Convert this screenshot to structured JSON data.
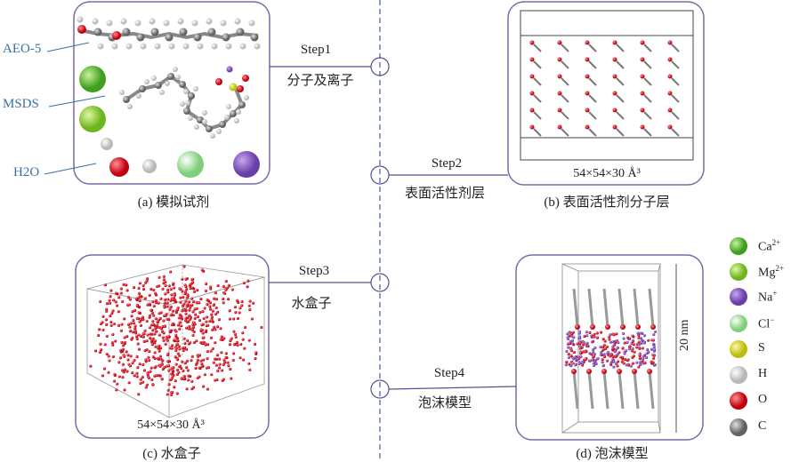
{
  "panels": {
    "a": {
      "caption": "(a) 模拟试剂"
    },
    "b": {
      "caption": "(b) 表面活性剂分子层",
      "dimension": "54×54×30 Å³"
    },
    "c": {
      "caption": "(c) 水盒子",
      "dimension": "54×54×30 Å³"
    },
    "d": {
      "caption": "(d) 泡沫模型",
      "height_label": "20 nm"
    }
  },
  "molecule_labels": {
    "aeo": "AEO-5",
    "msds": "MSDS",
    "water": "H2O"
  },
  "steps": [
    {
      "label": "Step1",
      "desc": "分子及离子"
    },
    {
      "label": "Step2",
      "desc": "表面活性剂层"
    },
    {
      "label": "Step3",
      "desc": "水盒子"
    },
    {
      "label": "Step4",
      "desc": "泡沫模型"
    }
  ],
  "legend": [
    {
      "label": "Ca",
      "charge": "2+",
      "color": "#4fb82e"
    },
    {
      "label": "Mg",
      "charge": "2+",
      "color": "#7cc22a"
    },
    {
      "label": "Na",
      "charge": "+",
      "color": "#8a5cbf"
    },
    {
      "label": "Cl",
      "charge": "−",
      "color": "#a6dba0"
    },
    {
      "label": "S",
      "charge": "",
      "color": "#dcdc2a"
    },
    {
      "label": "H",
      "charge": "",
      "color": "#f2f2f2"
    },
    {
      "label": "O",
      "charge": "",
      "color": "#e0202a"
    },
    {
      "label": "C",
      "charge": "",
      "color": "#8c8c8c"
    }
  ],
  "colors": {
    "frame": "#7a6aa8",
    "label_blue": "#3a6fa8",
    "divider": "#3a5f9a"
  }
}
